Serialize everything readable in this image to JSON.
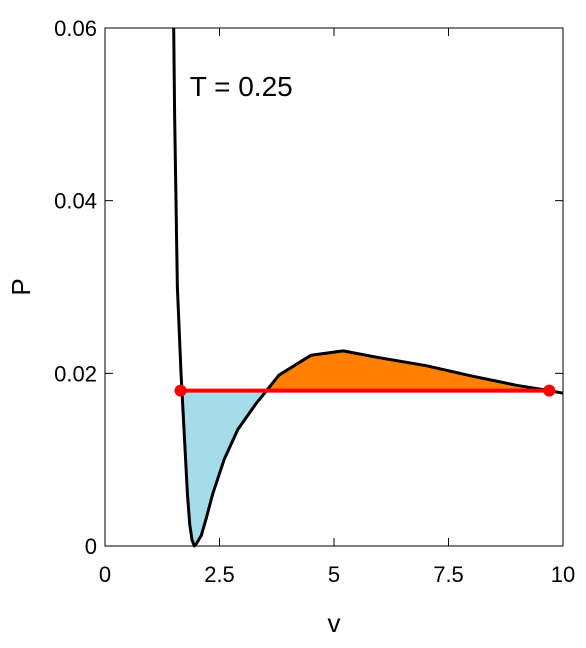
{
  "chart_data": {
    "type": "line",
    "xlabel": "v",
    "ylabel": "P",
    "xlim": [
      0,
      10
    ],
    "ylim": [
      0,
      0.06
    ],
    "x_ticks": [
      0,
      2.5,
      5,
      7.5,
      10
    ],
    "x_tick_labels": [
      "0",
      "2.5",
      "5",
      "7.5",
      "10"
    ],
    "y_ticks": [
      0,
      0.02,
      0.04,
      0.06
    ],
    "y_tick_labels": [
      "0",
      "0.02",
      "0.04",
      "0.06"
    ],
    "annotation": "T = 0.25",
    "isotherm": {
      "color": "#000000",
      "points": [
        [
          1.5,
          0.06
        ],
        [
          1.52,
          0.05
        ],
        [
          1.55,
          0.04
        ],
        [
          1.58,
          0.03
        ],
        [
          1.62,
          0.025
        ],
        [
          1.66,
          0.02
        ],
        [
          1.7,
          0.016
        ],
        [
          1.75,
          0.011
        ],
        [
          1.8,
          0.006
        ],
        [
          1.85,
          0.0025
        ],
        [
          1.9,
          0.0007
        ],
        [
          1.95,
          0.0
        ],
        [
          2.0,
          0.0003
        ],
        [
          2.1,
          0.0012
        ],
        [
          2.2,
          0.003
        ],
        [
          2.35,
          0.006
        ],
        [
          2.6,
          0.01
        ],
        [
          2.9,
          0.0135
        ],
        [
          3.3,
          0.0165
        ],
        [
          3.8,
          0.0198
        ],
        [
          4.5,
          0.0221
        ],
        [
          5.2,
          0.0226
        ],
        [
          6.0,
          0.0218
        ],
        [
          7.0,
          0.0209
        ],
        [
          8.0,
          0.0197
        ],
        [
          9.0,
          0.0186
        ],
        [
          9.7,
          0.018
        ],
        [
          10.0,
          0.0177
        ]
      ]
    },
    "coexistence_line": {
      "color": "#ff0000",
      "P": 0.018,
      "v_start": 1.65,
      "v_end": 9.7
    },
    "regions": [
      {
        "color": "#a6dce9",
        "v_from": 1.65,
        "v_to": 3.45,
        "side": "below"
      },
      {
        "color": "#ff8000",
        "v_from": 3.45,
        "v_to": 9.7,
        "side": "above"
      }
    ]
  }
}
